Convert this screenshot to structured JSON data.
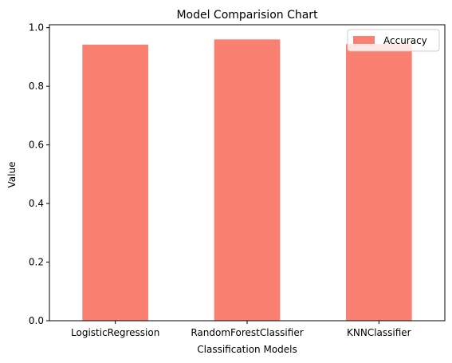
{
  "chart_data": {
    "type": "bar",
    "title": "Model Comparision Chart",
    "xlabel": "Classification Models",
    "ylabel": "Value",
    "categories": [
      "LogisticRegression",
      "RandomForestClassifier",
      "KNNClassifier"
    ],
    "series": [
      {
        "name": "Accuracy",
        "values": [
          0.942,
          0.96,
          0.944
        ],
        "color": "#fa8072"
      }
    ],
    "ylim": [
      0,
      1.01
    ],
    "yticks": [
      0.0,
      0.2,
      0.4,
      0.6,
      0.8,
      1.0
    ],
    "ytick_labels": [
      "0.0",
      "0.2",
      "0.4",
      "0.6",
      "0.8",
      "1.0"
    ],
    "grid": false,
    "legend_position": "top-right"
  }
}
